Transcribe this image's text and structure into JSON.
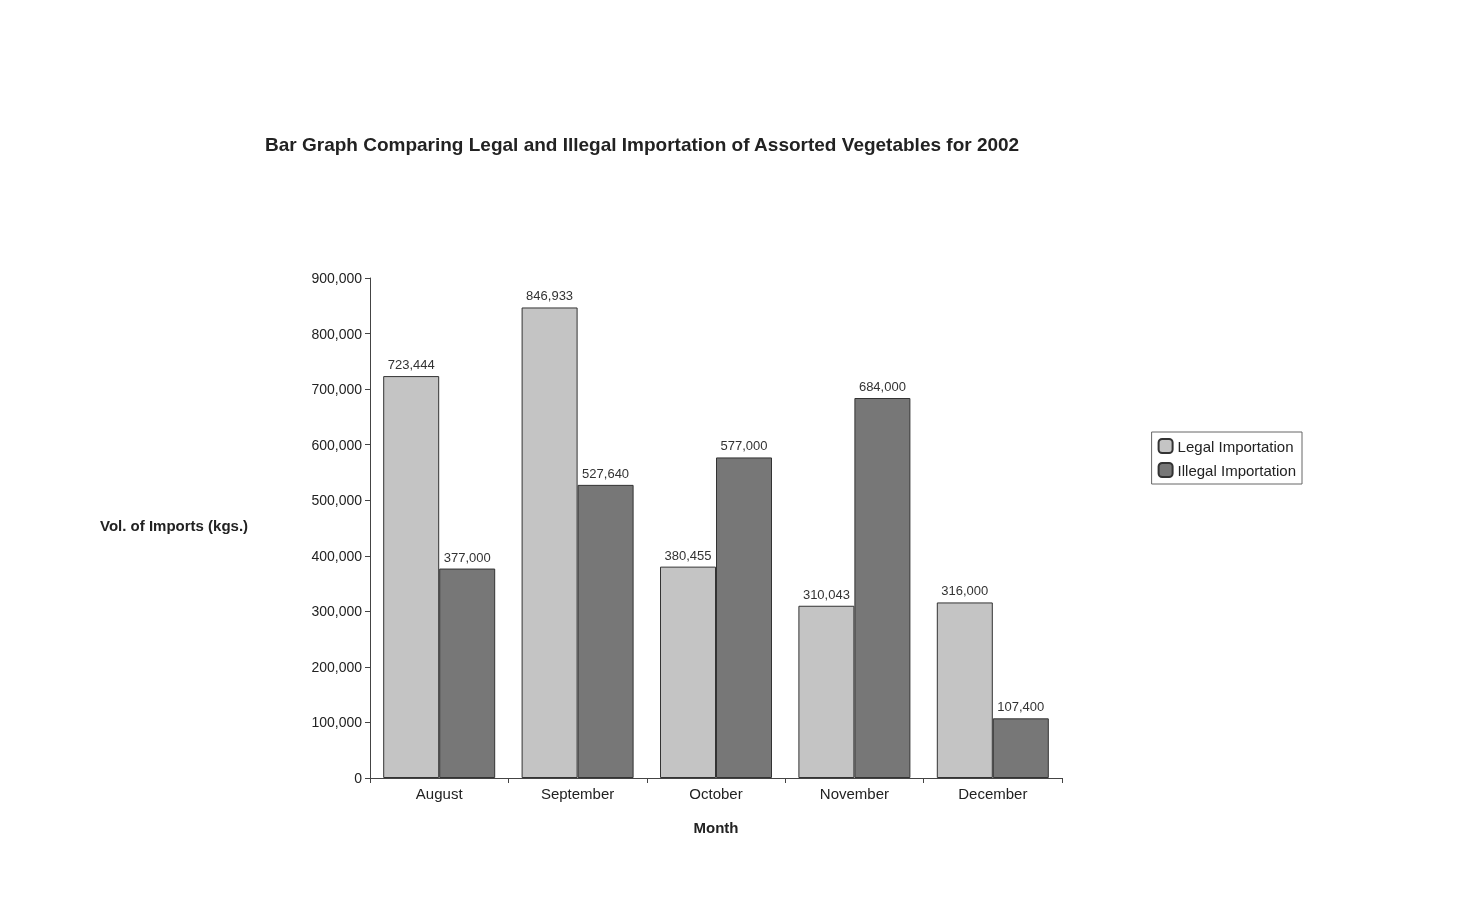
{
  "chart_data": {
    "type": "bar",
    "title": "Bar Graph Comparing Legal and Illegal Importation of Assorted Vegetables for 2002",
    "xlabel": "Month",
    "ylabel": "Vol. of Imports (kgs.)",
    "categories": [
      "August",
      "September",
      "October",
      "November",
      "December"
    ],
    "series": [
      {
        "name": "Legal Importation",
        "color": "#c4c4c4",
        "values": [
          723444,
          846933,
          380455,
          310043,
          316000
        ],
        "value_labels": [
          "723,444",
          "846,933",
          "380,455",
          "310,043",
          "316,000"
        ]
      },
      {
        "name": "Illegal Importation",
        "color": "#777777",
        "values": [
          377000,
          527640,
          577000,
          684000,
          107400
        ],
        "value_labels": [
          "377,000",
          "527,640",
          "577,000",
          "684,000",
          "107,400"
        ]
      }
    ],
    "ylim": [
      0,
      900000
    ],
    "yticks": [
      {
        "value": 0,
        "label": "0"
      },
      {
        "value": 100000,
        "label": "100,000"
      },
      {
        "value": 200000,
        "label": "200,000"
      },
      {
        "value": 300000,
        "label": "300,000"
      },
      {
        "value": 400000,
        "label": "400,000"
      },
      {
        "value": 500000,
        "label": "500,000"
      },
      {
        "value": 600000,
        "label": "600,000"
      },
      {
        "value": 700000,
        "label": "700,000"
      },
      {
        "value": 800000,
        "label": "800,000"
      },
      {
        "value": 900000,
        "label": "900,000"
      }
    ],
    "grid": false,
    "legend": "right"
  }
}
